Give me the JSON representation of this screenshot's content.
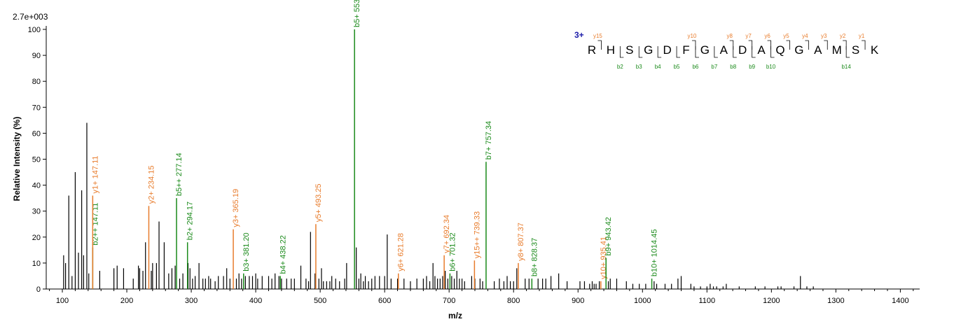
{
  "chart_data": {
    "type": "bar",
    "subtype": "mass-spectrum",
    "scale_label": "2.7e+003",
    "xlabel": "m/z",
    "ylabel": "Relative   Intensity (%)",
    "xlim": [
      75,
      1430
    ],
    "ylim": [
      0,
      100
    ],
    "x_ticks": [
      100,
      200,
      300,
      400,
      500,
      600,
      700,
      800,
      900,
      1000,
      1100,
      1200,
      1300,
      1400
    ],
    "y_ticks": [
      0,
      10,
      20,
      30,
      40,
      50,
      60,
      70,
      80,
      90,
      100
    ],
    "colors": {
      "y_ion": "#e87c2c",
      "b_ion": "#1a8a1a",
      "unassigned": "#000000",
      "charge": "#1a1aa8"
    },
    "peaks": [
      [
        102,
        13
      ],
      [
        105,
        10
      ],
      [
        110,
        36
      ],
      [
        115,
        5
      ],
      [
        120,
        45
      ],
      [
        125,
        14
      ],
      [
        130,
        38
      ],
      [
        133,
        13
      ],
      [
        138,
        64
      ],
      [
        141,
        6
      ],
      [
        147,
        16
      ],
      [
        158,
        7
      ],
      [
        180,
        8
      ],
      [
        185,
        9
      ],
      [
        195,
        8
      ],
      [
        210,
        4
      ],
      [
        218,
        9
      ],
      [
        220,
        8
      ],
      [
        225,
        7
      ],
      [
        229,
        18
      ],
      [
        238,
        7
      ],
      [
        240,
        10
      ],
      [
        246,
        10
      ],
      [
        250,
        26
      ],
      [
        258,
        18
      ],
      [
        265,
        6
      ],
      [
        270,
        8
      ],
      [
        275,
        9
      ],
      [
        282,
        4
      ],
      [
        287,
        6
      ],
      [
        295,
        10
      ],
      [
        298,
        8
      ],
      [
        302,
        4
      ],
      [
        306,
        5
      ],
      [
        312,
        10
      ],
      [
        318,
        4
      ],
      [
        322,
        4
      ],
      [
        327,
        5
      ],
      [
        330,
        4
      ],
      [
        337,
        3
      ],
      [
        342,
        5
      ],
      [
        350,
        5
      ],
      [
        355,
        8
      ],
      [
        360,
        4
      ],
      [
        370,
        4
      ],
      [
        374,
        6
      ],
      [
        378,
        4
      ],
      [
        384,
        5
      ],
      [
        390,
        5
      ],
      [
        395,
        5
      ],
      [
        400,
        6
      ],
      [
        403,
        4
      ],
      [
        410,
        5
      ],
      [
        420,
        5
      ],
      [
        425,
        4
      ],
      [
        430,
        6
      ],
      [
        436,
        5
      ],
      [
        440,
        4
      ],
      [
        448,
        4
      ],
      [
        455,
        4
      ],
      [
        460,
        4
      ],
      [
        470,
        9
      ],
      [
        478,
        4
      ],
      [
        482,
        3
      ],
      [
        485,
        22
      ],
      [
        492,
        6
      ],
      [
        498,
        4
      ],
      [
        502,
        8
      ],
      [
        505,
        3
      ],
      [
        510,
        3
      ],
      [
        515,
        3
      ],
      [
        518,
        5
      ],
      [
        524,
        4
      ],
      [
        530,
        3
      ],
      [
        538,
        4
      ],
      [
        541,
        10
      ],
      [
        556,
        16
      ],
      [
        560,
        4
      ],
      [
        563,
        6
      ],
      [
        567,
        3
      ],
      [
        570,
        5
      ],
      [
        575,
        3
      ],
      [
        580,
        4
      ],
      [
        585,
        5
      ],
      [
        592,
        5
      ],
      [
        600,
        5
      ],
      [
        604,
        21
      ],
      [
        610,
        4
      ],
      [
        620,
        4
      ],
      [
        630,
        4
      ],
      [
        640,
        3
      ],
      [
        650,
        4
      ],
      [
        660,
        4
      ],
      [
        665,
        5
      ],
      [
        670,
        3
      ],
      [
        675,
        10
      ],
      [
        678,
        5
      ],
      [
        682,
        4
      ],
      [
        686,
        4
      ],
      [
        690,
        5
      ],
      [
        694,
        7
      ],
      [
        698,
        4
      ],
      [
        704,
        5
      ],
      [
        708,
        4
      ],
      [
        712,
        7
      ],
      [
        716,
        4
      ],
      [
        720,
        4
      ],
      [
        724,
        3
      ],
      [
        735,
        5
      ],
      [
        740,
        4
      ],
      [
        748,
        4
      ],
      [
        752,
        3
      ],
      [
        770,
        3
      ],
      [
        778,
        4
      ],
      [
        785,
        3
      ],
      [
        790,
        5
      ],
      [
        795,
        3
      ],
      [
        800,
        3
      ],
      [
        805,
        8
      ],
      [
        818,
        4
      ],
      [
        824,
        4
      ],
      [
        838,
        4
      ],
      [
        845,
        4
      ],
      [
        850,
        4
      ],
      [
        858,
        5
      ],
      [
        870,
        6
      ],
      [
        883,
        3
      ],
      [
        903,
        3
      ],
      [
        910,
        3
      ],
      [
        918,
        2
      ],
      [
        922,
        3
      ],
      [
        925,
        2
      ],
      [
        928,
        2
      ],
      [
        933,
        3
      ],
      [
        947,
        3
      ],
      [
        950,
        4
      ],
      [
        960,
        4
      ],
      [
        975,
        3
      ],
      [
        985,
        2
      ],
      [
        995,
        2
      ],
      [
        1005,
        2
      ],
      [
        1018,
        3
      ],
      [
        1022,
        2
      ],
      [
        1035,
        2
      ],
      [
        1045,
        2
      ],
      [
        1055,
        4
      ],
      [
        1060,
        5
      ],
      [
        1075,
        2
      ],
      [
        1080,
        1
      ],
      [
        1090,
        1
      ],
      [
        1100,
        1
      ],
      [
        1105,
        2
      ],
      [
        1110,
        1
      ],
      [
        1115,
        1
      ],
      [
        1125,
        1
      ],
      [
        1130,
        2
      ],
      [
        1150,
        1
      ],
      [
        1175,
        1
      ],
      [
        1190,
        1
      ],
      [
        1210,
        1
      ],
      [
        1215,
        1
      ],
      [
        1235,
        1
      ],
      [
        1245,
        5
      ],
      [
        1255,
        1
      ],
      [
        1265,
        1
      ]
    ],
    "annotations": [
      {
        "mz": 147.11,
        "intensity": 16,
        "label": "b2++ 147.11",
        "ion": "b"
      },
      {
        "mz": 147.11,
        "intensity": 36,
        "label": "y1+ 147.11",
        "ion": "y"
      },
      {
        "mz": 234.15,
        "intensity": 32,
        "label": "y2+ 234.15",
        "ion": "y"
      },
      {
        "mz": 277.14,
        "intensity": 35,
        "label": "b5++ 277.14",
        "ion": "b"
      },
      {
        "mz": 294.17,
        "intensity": 18,
        "label": "b2+ 294.17",
        "ion": "b"
      },
      {
        "mz": 365.19,
        "intensity": 23,
        "label": "y3+ 365.19",
        "ion": "y"
      },
      {
        "mz": 381.2,
        "intensity": 6,
        "label": "b3+ 381.20",
        "ion": "b"
      },
      {
        "mz": 438.22,
        "intensity": 5,
        "label": "b4+ 438.22",
        "ion": "b"
      },
      {
        "mz": 493.25,
        "intensity": 25,
        "label": "y5+ 493.25",
        "ion": "y"
      },
      {
        "mz": 553.27,
        "intensity": 100,
        "label": "b5+ 553.27",
        "ion": "b"
      },
      {
        "mz": 621.28,
        "intensity": 6,
        "label": "y6+ 621.28",
        "ion": "y"
      },
      {
        "mz": 692.34,
        "intensity": 13,
        "label": "y7+ 692.34",
        "ion": "y"
      },
      {
        "mz": 701.32,
        "intensity": 6,
        "label": "b6+ 701.32",
        "ion": "b"
      },
      {
        "mz": 739.33,
        "intensity": 11,
        "label": "y15++ 739.33",
        "ion": "y"
      },
      {
        "mz": 757.34,
        "intensity": 49,
        "label": "b7+ 757.34",
        "ion": "b"
      },
      {
        "mz": 807.37,
        "intensity": 10,
        "label": "y8+ 807.37",
        "ion": "y"
      },
      {
        "mz": 828.37,
        "intensity": 4,
        "label": "b8+ 828.37",
        "ion": "b"
      },
      {
        "mz": 935.41,
        "intensity": 3,
        "label": "y10+ 935.41",
        "ion": "y"
      },
      {
        "mz": 943.42,
        "intensity": 12,
        "label": "b9+ 943.42",
        "ion": "b"
      },
      {
        "mz": 1014.45,
        "intensity": 4,
        "label": "b10+ 1014.45",
        "ion": "b"
      }
    ],
    "sequence": {
      "charge": "3+",
      "residues": [
        "R",
        "H",
        "S",
        "G",
        "D",
        "F",
        "G",
        "A",
        "D",
        "A",
        "Q",
        "G",
        "A",
        "M",
        "S",
        "K"
      ],
      "y_labels": [
        {
          "after": 1,
          "text": "y15"
        },
        {
          "after": 6,
          "text": "y10"
        },
        {
          "after": 8,
          "text": "y8"
        },
        {
          "after": 9,
          "text": "y7"
        },
        {
          "after": 10,
          "text": "y6"
        },
        {
          "after": 11,
          "text": "y5"
        },
        {
          "after": 12,
          "text": "y4"
        },
        {
          "after": 13,
          "text": "y3"
        },
        {
          "after": 14,
          "text": "y2"
        },
        {
          "after": 15,
          "text": "y1"
        }
      ],
      "b_labels": [
        {
          "after": 2,
          "text": "b2"
        },
        {
          "after": 3,
          "text": "b3"
        },
        {
          "after": 4,
          "text": "b4"
        },
        {
          "after": 5,
          "text": "b5"
        },
        {
          "after": 6,
          "text": "b6"
        },
        {
          "after": 7,
          "text": "b7"
        },
        {
          "after": 8,
          "text": "b8"
        },
        {
          "after": 9,
          "text": "b9"
        },
        {
          "after": 10,
          "text": "b10"
        },
        {
          "after": 14,
          "text": "b14"
        }
      ]
    }
  }
}
